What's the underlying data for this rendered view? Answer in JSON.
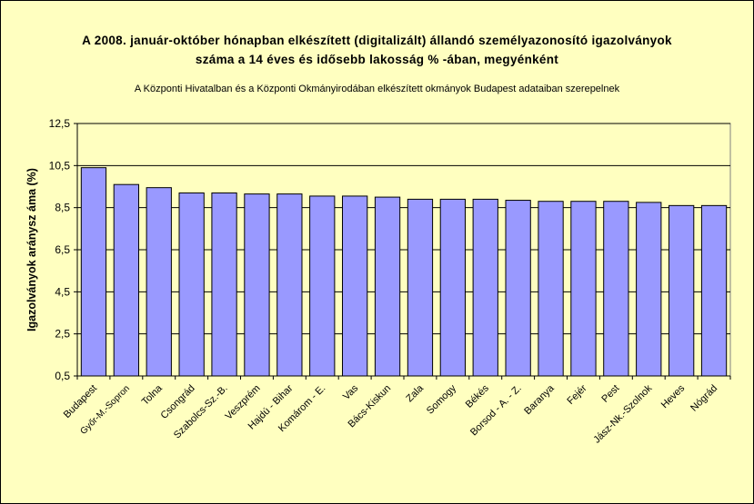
{
  "chart_data": {
    "type": "bar",
    "title": "A 2008. január-október hónapban elkészített (digitalizált) állandó személyazonosító igazolványok száma a 14 éves és idősebb lakosság % -ában, megyénként",
    "title_line1": "A 2008. január-október hónapban elkészített (digitalizált) állandó személyazonosító igazolványok",
    "title_line2": "száma a 14 éves és idősebb lakosság % -ában, megyénként",
    "subtitle": "A Központi Hivatalban és a Központi Okmányirodában elkészített okmányok Budapest adataiban szerepelnek",
    "xlabel": "",
    "ylabel": "Igazolványok aránysz áma (%)",
    "ylim": [
      0.5,
      12.5
    ],
    "yticks": [
      "0,5",
      "2,5",
      "4,5",
      "6,5",
      "8,5",
      "10,5",
      "12,5"
    ],
    "ytick_values": [
      0.5,
      2.5,
      4.5,
      6.5,
      8.5,
      10.5,
      12.5
    ],
    "gridlines": "horizontal",
    "legend": "none",
    "categories": [
      "Budapest",
      "Győr-M.-Sopron",
      "Tolna",
      "Csongrád",
      "Szabolcs-Sz.-B.",
      "Veszprém",
      "Hajdú - Bihar",
      "Komárom - E.",
      "Vas",
      "Bács-Kiskun",
      "Zala",
      "Somogy",
      "Békés",
      "Borsod - A. - Z.",
      "Baranya",
      "Fejér",
      "Pest",
      "Jász-Nk.-Szolnok",
      "Heves",
      "Nógrád"
    ],
    "values": [
      10.4,
      9.6,
      9.45,
      9.2,
      9.2,
      9.15,
      9.15,
      9.05,
      9.05,
      9.0,
      8.9,
      8.9,
      8.9,
      8.85,
      8.8,
      8.8,
      8.8,
      8.75,
      8.6,
      8.6
    ],
    "colors": {
      "background": "#ffffc0",
      "plot_area": "#ffffc0",
      "bar_fill": "#9999ff",
      "bar_stroke": "#000000",
      "grid": "#000000"
    }
  }
}
